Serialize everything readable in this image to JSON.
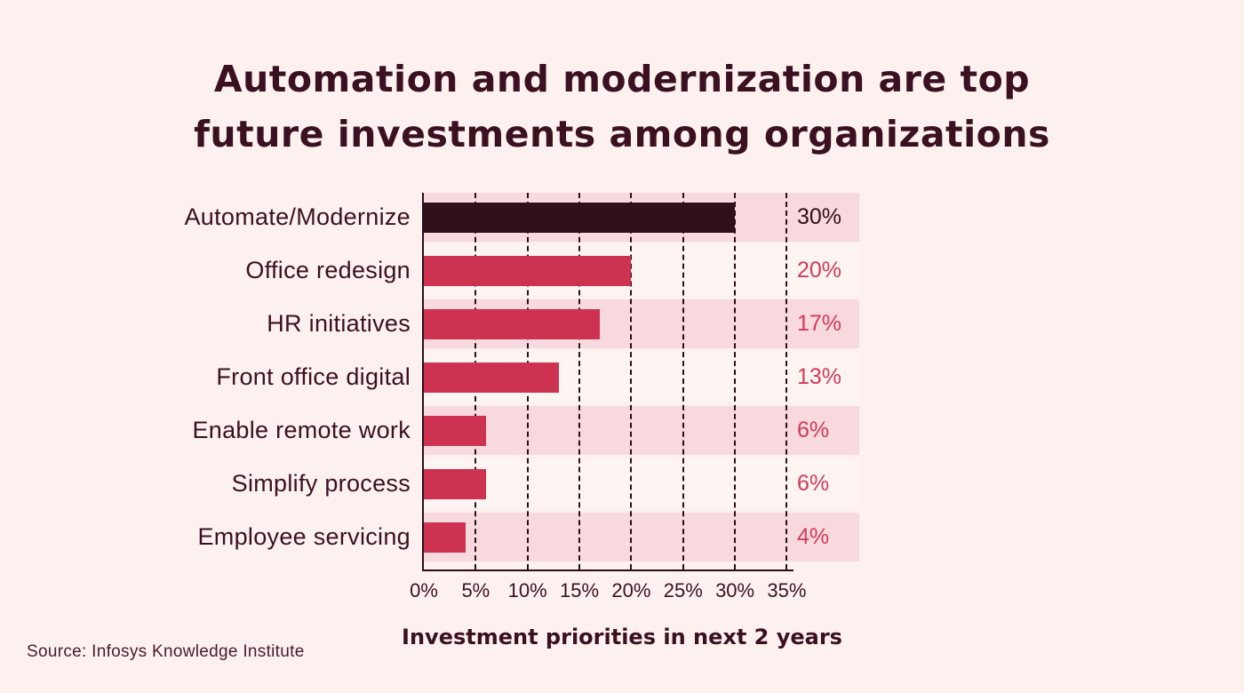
{
  "page": {
    "title_line1": "Automation and modernization are top",
    "title_line2": "future investments among organizations",
    "source": "Source: Infosys Knowledge Institute"
  },
  "chart_data": {
    "type": "bar",
    "orientation": "horizontal",
    "title": "Automation and modernization are top future investments among organizations",
    "xlabel": "Investment priorities in next 2 years",
    "categories": [
      "Automate/Modernize",
      "Office redesign",
      "HR initiatives",
      "Front office digital",
      "Enable remote work",
      "Simplify process",
      "Employee servicing"
    ],
    "values": [
      30,
      20,
      17,
      13,
      6,
      6,
      4
    ],
    "value_labels": [
      "30%",
      "20%",
      "17%",
      "13%",
      "6%",
      "6%",
      "4%"
    ],
    "x_ticks": [
      "0%",
      "5%",
      "10%",
      "15%",
      "20%",
      "25%",
      "30%",
      "35%"
    ],
    "x_tick_values": [
      0,
      5,
      10,
      15,
      20,
      25,
      30,
      35
    ],
    "xlim": [
      0,
      35
    ],
    "grid": "dashed-vertical",
    "legend": "none",
    "highlighted_category": "Automate/Modernize"
  },
  "colors": {
    "background": "#fdf1ef",
    "band_pink": "#f8d9de",
    "band_light": "#fef5f3",
    "bar_highlight": "#32101a",
    "bar_default": "#cd3351",
    "value_text_highlight": "#32101a",
    "value_text_default": "#d23a57",
    "text_dark": "#3b1122",
    "axis": "#2b0f18"
  }
}
